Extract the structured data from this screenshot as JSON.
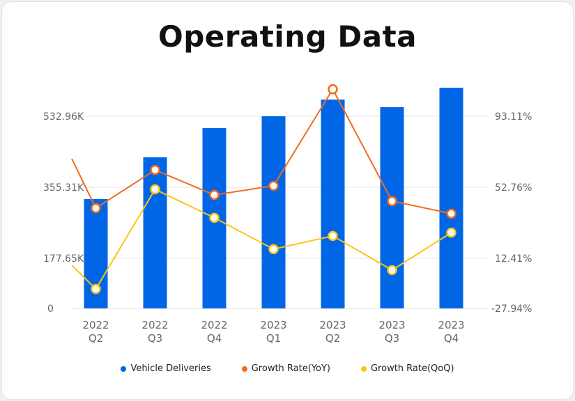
{
  "chart_data": {
    "type": "bar+line",
    "title": "Operating Data",
    "categories": [
      [
        "2022",
        "Q2"
      ],
      [
        "2022",
        "Q3"
      ],
      [
        "2022",
        "Q4"
      ],
      [
        "2023",
        "Q1"
      ],
      [
        "2023",
        "Q2"
      ],
      [
        "2023",
        "Q3"
      ],
      [
        "2023",
        "Q4"
      ]
    ],
    "left_axis": {
      "ticks": [
        "0",
        "177.65K",
        "355.31K",
        "532.96K"
      ],
      "tick_values": [
        0,
        177.65,
        355.31,
        532.96
      ],
      "unit": "K"
    },
    "right_axis": {
      "ticks": [
        "-27.94%",
        "12.41%",
        "52.76%",
        "93.11%"
      ],
      "tick_values": [
        -27.94,
        12.41,
        52.76,
        93.11
      ],
      "unit": "%"
    },
    "grid": true,
    "legend_placement": "bottom",
    "series": [
      {
        "name": "Vehicle Deliveries",
        "type": "bar",
        "axis": "left",
        "color": "#0066e6",
        "values": [
          325.7,
          430.2,
          503.4,
          533.0,
          574.8,
          555.6,
          604.4
        ]
      },
      {
        "name": "Growth Rate(YoY)",
        "type": "line",
        "axis": "right",
        "color": "#f26b1d",
        "previous_value": 69.0,
        "values": [
          40.9,
          62.6,
          48.4,
          53.6,
          108.5,
          44.9,
          37.8
        ]
      },
      {
        "name": "Growth Rate(QoQ)",
        "type": "line",
        "axis": "right",
        "color": "#fcc515",
        "previous_value": 6.8,
        "values": [
          -12.3,
          51.6,
          35.4,
          17.6,
          25.1,
          2.9,
          27.0
        ]
      }
    ]
  }
}
